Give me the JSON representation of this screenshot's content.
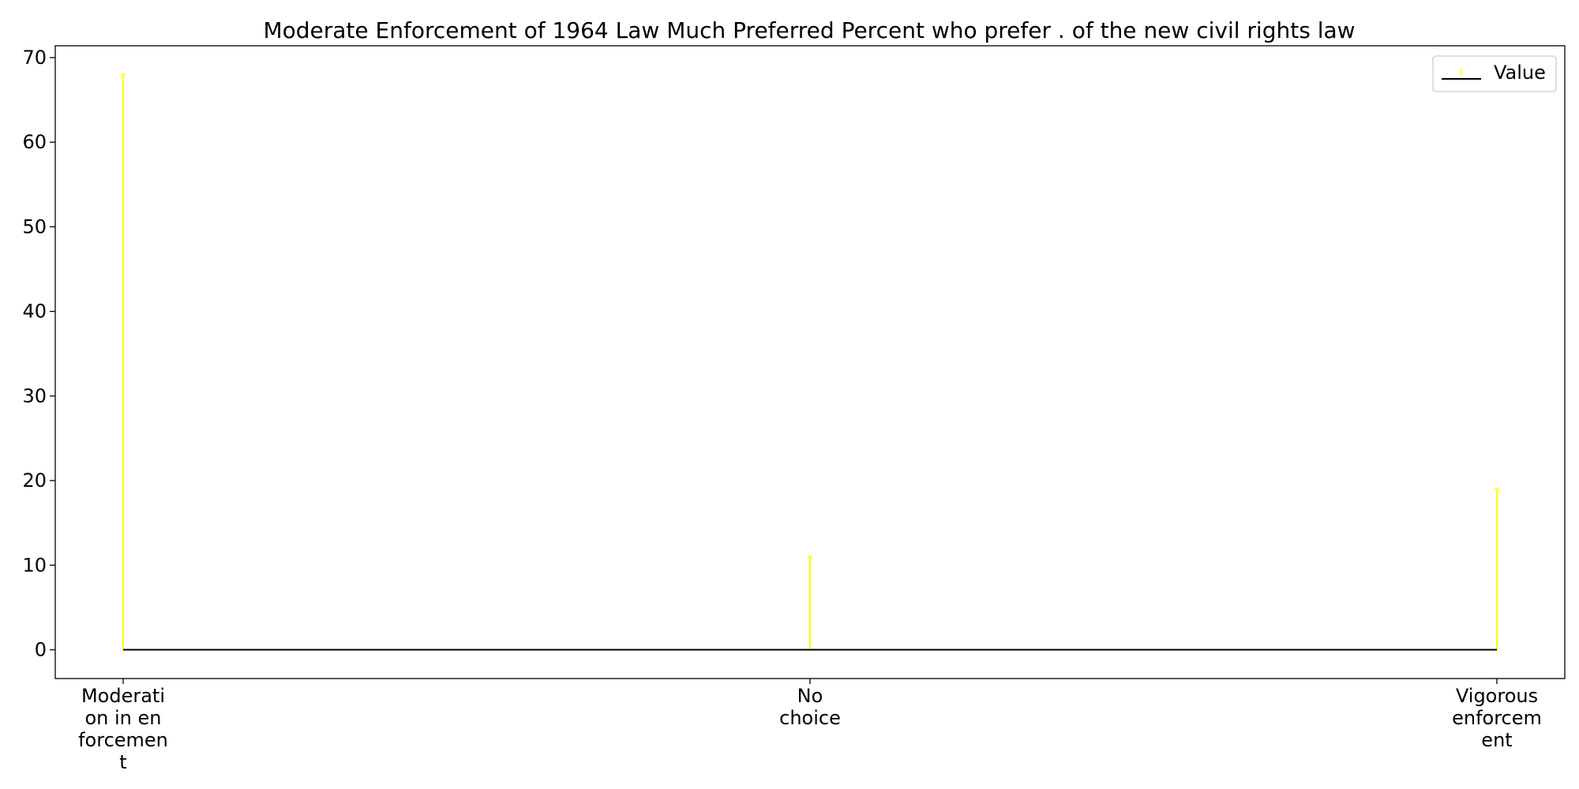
{
  "chart_data": {
    "type": "stem",
    "title": "Moderate Enforcement of 1964 Law Much Preferred Percent who prefer . of the new civil rights law",
    "xlabel": "",
    "ylabel": "",
    "categories": [
      [
        "Moderati",
        "on in en",
        "forcemen",
        "t"
      ],
      [
        "No",
        "choice"
      ],
      [
        "Vigorous",
        "enforcem",
        "ent"
      ]
    ],
    "series": [
      {
        "name": "Value",
        "values": [
          68,
          11,
          19
        ]
      }
    ],
    "ylim": [
      -3.4,
      71.4
    ],
    "yticks": [
      0,
      10,
      20,
      30,
      40,
      50,
      60,
      70
    ],
    "grid": false,
    "legend": {
      "position": "top-right"
    },
    "colors": {
      "stem": "#ffff00",
      "baseline": "#000000",
      "axes": "#000000"
    }
  }
}
